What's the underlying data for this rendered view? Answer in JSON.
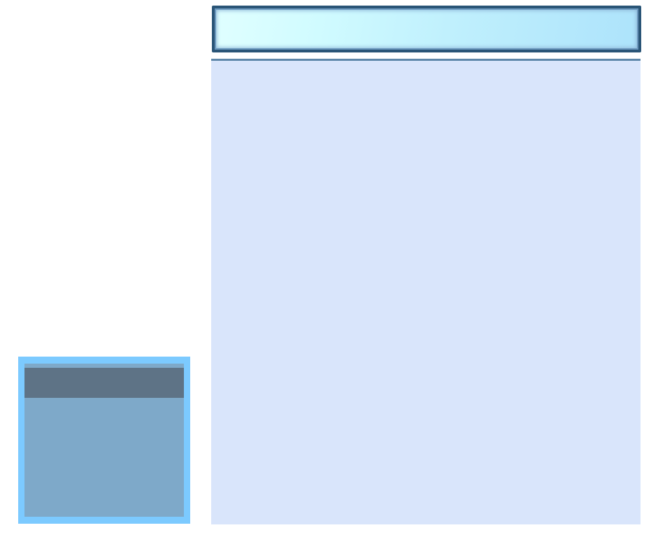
{
  "colors": {
    "title_bar_border": "#2a5577",
    "title_bar_fill_start": "#e0ffff",
    "title_bar_fill_end": "#ade3fb",
    "main_panel_bg": "#d9e5fb",
    "main_panel_rule": "#5e87aa",
    "side_box_frame": "#7ccaff",
    "side_box_body": "#7ea9c9",
    "side_box_header": "#5e7386"
  }
}
